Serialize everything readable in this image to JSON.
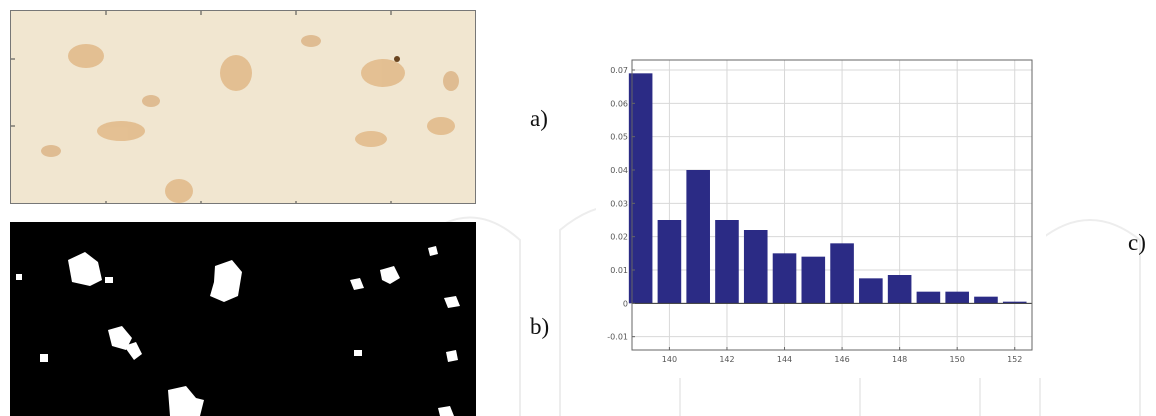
{
  "panel_labels": {
    "a": "a)",
    "b": "b)",
    "c": "c)"
  },
  "colors": {
    "bar": "#2b2b85",
    "grid": "#d8d8d8",
    "axis": "#666666",
    "photo_bg": "#f1e6d0",
    "stain": "#d9a060",
    "mask_bg": "#000000",
    "mask_blob": "#ffffff"
  },
  "chart_data": {
    "type": "bar",
    "x": [
      139,
      140,
      141,
      142,
      143,
      144,
      145,
      146,
      147,
      148,
      149,
      150,
      151,
      152
    ],
    "values": [
      0.069,
      0.025,
      0.04,
      0.025,
      0.022,
      0.015,
      0.014,
      0.018,
      0.0075,
      0.0085,
      0.0035,
      0.0035,
      0.002,
      0.0005
    ],
    "xticks": [
      "140",
      "142",
      "144",
      "146",
      "148",
      "150",
      "152"
    ],
    "yticks": [
      "-0.01",
      "0",
      "0.01",
      "0.02",
      "0.03",
      "0.04",
      "0.05",
      "0.06",
      "0.07"
    ],
    "xlim": [
      138.7,
      152.6
    ],
    "ylim": [
      -0.014,
      0.073
    ],
    "grid": true,
    "title": "",
    "xlabel": "",
    "ylabel": ""
  }
}
